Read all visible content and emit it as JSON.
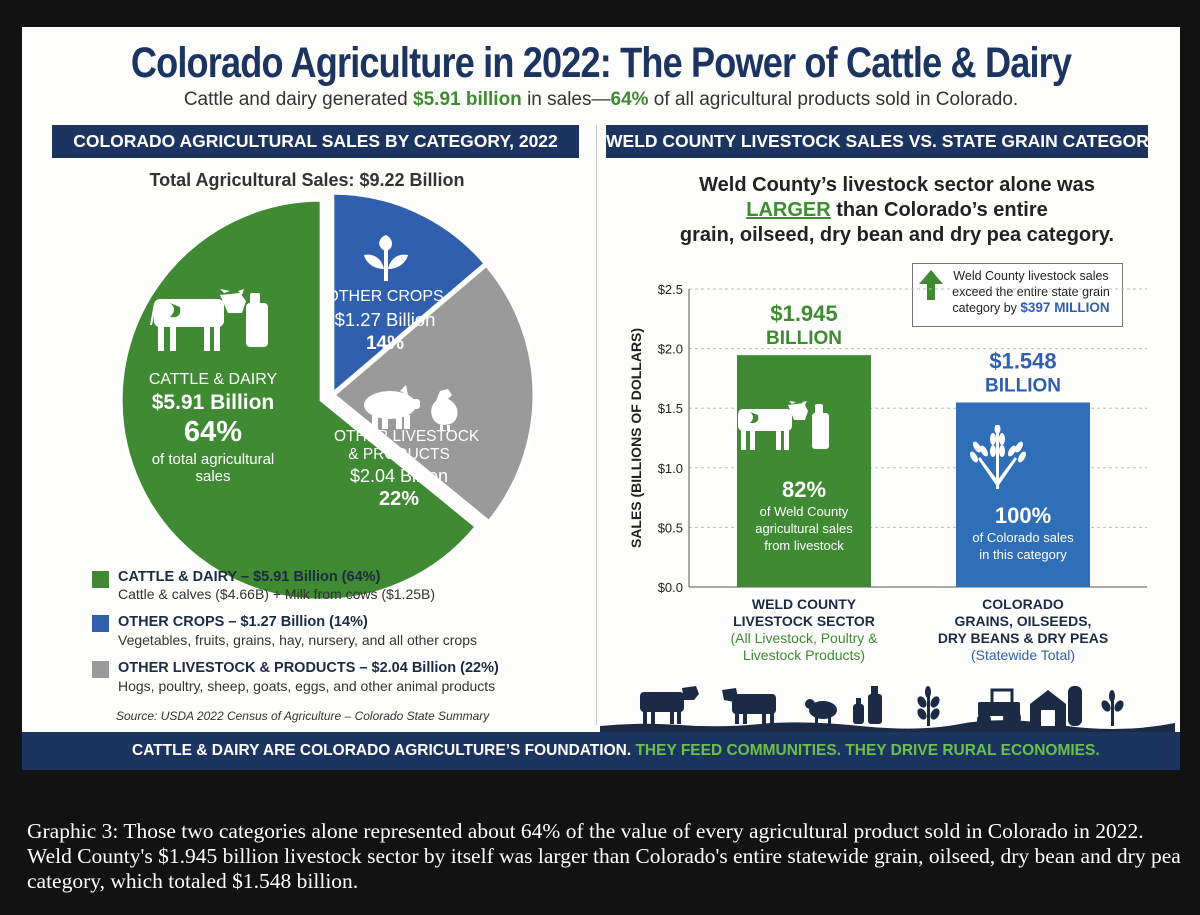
{
  "header": {
    "title": "Colorado Agriculture in 2022: The Power of Cattle & Dairy",
    "subtitle_pre": "Cattle and dairy generated ",
    "subtitle_hl1": "$5.91 billion",
    "subtitle_mid": " in sales—",
    "subtitle_hl2": "64%",
    "subtitle_post": " of all agricultural products sold in Colorado."
  },
  "left_panel": {
    "heading": "COLORADO AGRICULTURAL SALES BY CATEGORY, 2022",
    "total": "Total Agricultural Sales: $9.22 Billion"
  },
  "pie_labels": {
    "cattle": {
      "name": "CATTLE & DAIRY",
      "value": "$5.91 Billion",
      "pct": "64%",
      "note_line1": "of total agricultural",
      "note_line2": "sales"
    },
    "crops": {
      "name": "OTHER CROPS",
      "value": "$1.27 Billion",
      "pct": "14%"
    },
    "livestock": {
      "name_line1": "OTHER LIVESTOCK",
      "name_line2": "& PRODUCTS",
      "value": "$2.04 Billion",
      "pct": "22%"
    }
  },
  "legend": [
    {
      "title": "CATTLE & DAIRY – $5.91 Billion (64%)",
      "detail": "Cattle & calves ($4.66B) + Milk from cows ($1.25B)"
    },
    {
      "title": "OTHER CROPS – $1.27 Billion (14%)",
      "detail": "Vegetables, fruits, grains, hay, nursery, and all other crops"
    },
    {
      "title": "OTHER LIVESTOCK & PRODUCTS – $2.04 Billion (22%)",
      "detail": "Hogs, poultry, sheep, goats, eggs, and other animal products"
    }
  ],
  "source": "Source: USDA 2022 Census of Agriculture – Colorado State Summary",
  "right_panel": {
    "heading": "WELD COUNTY LIVESTOCK SALES VS. STATE GRAIN CATEGORY",
    "intro_line1": "Weld County’s livestock sector alone was",
    "intro_hl": "LARGER",
    "intro_line2_rest": " than Colorado’s entire",
    "intro_line3": "grain, oilseed, dry bean and dry pea category.",
    "callout_line1": "Weld County livestock sales",
    "callout_line2": "exceed the entire state grain",
    "callout_line3_pre": "category by ",
    "callout_line3_hl": "$397 MILLION"
  },
  "bar_labels": [
    {
      "value_line1": "$1.945",
      "value_line2": "BILLION",
      "pct": "82%",
      "inside1": "of Weld County",
      "inside2": "agricultural sales",
      "inside3": "from livestock",
      "cat1": "WELD COUNTY",
      "cat2": "LIVESTOCK SECTOR",
      "cat3": "(All Livestock, Poultry &",
      "cat4": "Livestock Products)"
    },
    {
      "value_line1": "$1.548",
      "value_line2": "BILLION",
      "pct": "100%",
      "inside1": "of Colorado sales",
      "inside2": "in this category",
      "inside3": "",
      "cat1": "COLORADO",
      "cat2": "GRAINS, OILSEEDS,",
      "cat3": "DRY BEANS & DRY PEAS",
      "cat4": "(Statewide Total)"
    }
  ],
  "footer": {
    "text": "CATTLE & DAIRY ARE COLORADO AGRICULTURE’S FOUNDATION.",
    "hl": " THEY FEED COMMUNITIES. THEY DRIVE RURAL ECONOMIES."
  },
  "caption": "Graphic 3: Those two categories alone represented about 64% of the value of every agricultural product sold in Colorado in 2022. Weld County's $1.945 billion livestock sector by itself was larger than Colorado's entire statewide grain, oilseed, dry bean and dry pea category, which totaled $1.548 billion.",
  "colors": {
    "navy": "#1c3560",
    "cattle": "#3f8a33",
    "crops": "#2f5fad",
    "livestock": "#9a9a9a",
    "weld": "#3f8a33",
    "grain": "#2f6fb8"
  },
  "chart_data": [
    {
      "type": "pie",
      "title": "COLORADO AGRICULTURAL SALES BY CATEGORY, 2022",
      "subtitle": "Total Agricultural Sales: $9.22 Billion",
      "categories": [
        "CATTLE & DAIRY",
        "OTHER CROPS",
        "OTHER LIVESTOCK & PRODUCTS"
      ],
      "values": [
        5.91,
        1.27,
        2.04
      ],
      "percentages": [
        64,
        14,
        22
      ],
      "units": "billion USD"
    },
    {
      "type": "bar",
      "title": "WELD COUNTY LIVESTOCK SALES VS. STATE GRAIN CATEGORY",
      "categories": [
        "WELD COUNTY LIVESTOCK SECTOR",
        "COLORADO GRAINS, OILSEEDS, DRY BEANS & DRY PEAS"
      ],
      "values": [
        1.945,
        1.548
      ],
      "ylabel": "SALES (BILLIONS OF DOLLARS)",
      "ylim": [
        0,
        2.5
      ],
      "yticks": [
        "$0.0",
        "$0.5",
        "$1.0",
        "$1.5",
        "$2.0",
        "$2.5"
      ],
      "grid": true
    }
  ]
}
